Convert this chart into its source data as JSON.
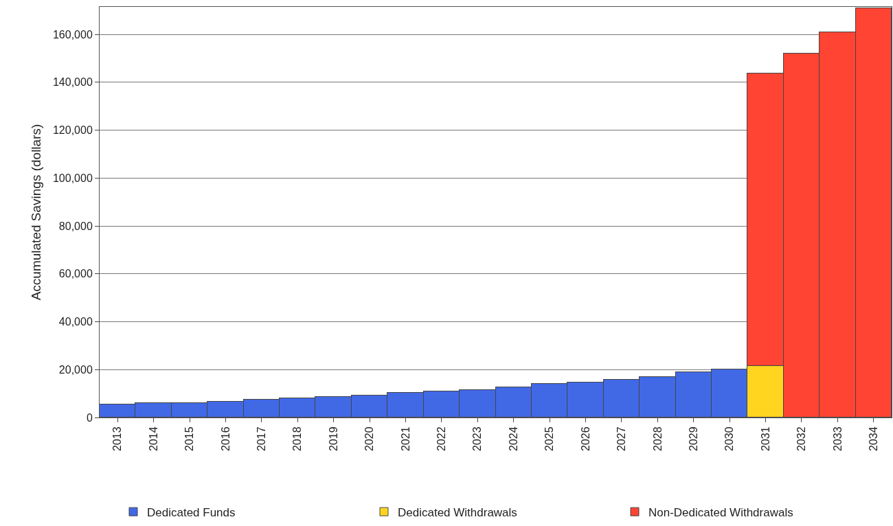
{
  "chart_data": {
    "type": "bar",
    "stacked": true,
    "ylabel": "Accumulated Savings (dollars)",
    "categories": [
      "2013",
      "2014",
      "2015",
      "2016",
      "2017",
      "2018",
      "2019",
      "2020",
      "2021",
      "2022",
      "2023",
      "2024",
      "2025",
      "2026",
      "2027",
      "2028",
      "2029",
      "2030",
      "2031",
      "2032",
      "2033",
      "2034"
    ],
    "series": [
      {
        "name": "Dedicated Funds",
        "color": "#4169e6",
        "values": [
          5400,
          6000,
          6100,
          6700,
          7400,
          8000,
          8600,
          9100,
          10300,
          11000,
          11600,
          12700,
          14000,
          14600,
          15900,
          17000,
          19000,
          20000,
          null,
          null,
          null,
          null
        ]
      },
      {
        "name": "Dedicated Withdrawals",
        "color": "#ffd520",
        "values": [
          null,
          null,
          null,
          null,
          null,
          null,
          null,
          null,
          null,
          null,
          null,
          null,
          null,
          null,
          null,
          null,
          null,
          null,
          21400,
          null,
          null,
          null
        ]
      },
      {
        "name": "Non-Dedicated Withdrawals",
        "color": "#ff4433",
        "values": [
          null,
          null,
          null,
          null,
          null,
          null,
          null,
          null,
          null,
          null,
          null,
          null,
          null,
          null,
          null,
          null,
          null,
          null,
          122200,
          152000,
          161000,
          171000
        ]
      }
    ],
    "ylim": [
      0,
      171500
    ],
    "yticks": [
      0,
      {
        "value": 20000,
        "label": "20,000"
      },
      {
        "value": 40000,
        "label": "40,000"
      },
      {
        "value": 60000,
        "label": "60,000"
      },
      {
        "value": 80000,
        "label": "80,000"
      },
      {
        "value": 100000,
        "label": "100,000"
      },
      {
        "value": 120000,
        "label": "120,000"
      },
      {
        "value": 140000,
        "label": "140,000"
      },
      {
        "value": 160000,
        "label": "160,000"
      }
    ],
    "grid": "y",
    "legend": "bottom"
  }
}
